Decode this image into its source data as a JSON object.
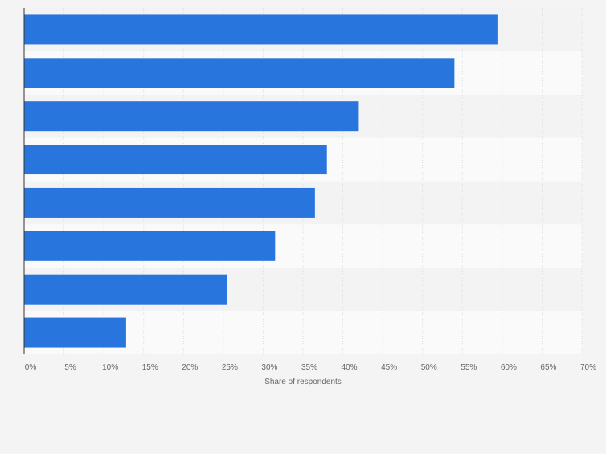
{
  "colors": {
    "bar": "#2876dd",
    "background": "#f4f4f4",
    "band_light": "#fafafa",
    "band_dark": "#f3f3f3",
    "grid": "#dddddd",
    "axis": "#333333",
    "tick_text": "#666666"
  },
  "chart_data": {
    "type": "bar",
    "orientation": "horizontal",
    "title": "",
    "xlabel": "Share of respondents",
    "ylabel": "",
    "xlim": [
      0,
      70
    ],
    "x_ticks": [
      "0%",
      "5%",
      "10%",
      "15%",
      "20%",
      "25%",
      "30%",
      "35%",
      "40%",
      "45%",
      "50%",
      "55%",
      "60%",
      "65%",
      "70%"
    ],
    "x_tick_values": [
      0,
      5,
      10,
      15,
      20,
      25,
      30,
      35,
      40,
      45,
      50,
      55,
      60,
      65,
      70
    ],
    "categories": [
      "",
      "",
      "",
      "",
      "",
      "",
      "",
      ""
    ],
    "values": [
      59.5,
      54,
      42,
      38,
      36.5,
      31.5,
      25.5,
      12.8
    ],
    "value_unit": "%",
    "grid": true,
    "legend": "none"
  }
}
